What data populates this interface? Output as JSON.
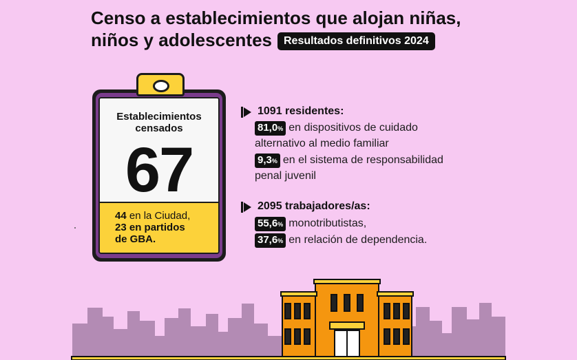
{
  "header": {
    "title_line1": "Censo a establecimientos que alojan niñas,",
    "title_line2": "niños y adolescentes",
    "badge": "Resultados definitivos 2024"
  },
  "clipboard": {
    "title": "Establecimientos censados",
    "number": "67",
    "detail_line1_bold": "44",
    "detail_line1": "en la Ciudad,",
    "detail_line2_bold": "23",
    "detail_line2": "en partidos",
    "detail_line3": "de GBA."
  },
  "residentes": {
    "heading": "1091 residentes:",
    "items": [
      {
        "value": "81,0",
        "unit": "%",
        "text_line1": "en dispositivos de cuidado",
        "text_line2": "alternativo al medio familiar"
      },
      {
        "value": "9,3",
        "unit": "%",
        "text_line1": "en el sistema de responsabilidad",
        "text_line2": "penal juvenil"
      }
    ]
  },
  "trabajadores": {
    "heading": "2095 trabajadores/as:",
    "items": [
      {
        "value": "55,6",
        "unit": "%",
        "text_line1": "monotributistas,"
      },
      {
        "value": "37,6",
        "unit": "%",
        "text_line1": "en relación de dependencia."
      }
    ]
  },
  "colors": {
    "background": "#f7c9f2",
    "accent_yellow": "#fcd23a",
    "clipboard_purple": "#7a3c8c",
    "skyline": "#b38bb4",
    "building": "#f5960f"
  }
}
